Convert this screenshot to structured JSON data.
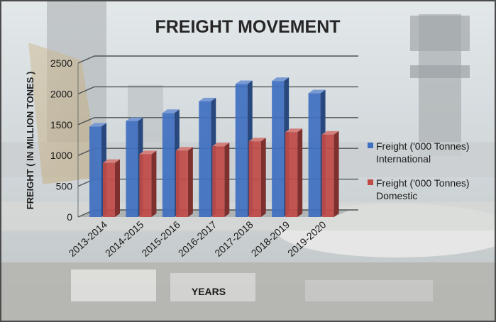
{
  "chart_data": {
    "type": "bar",
    "title": "FREIGHT MOVEMENT",
    "xlabel": "YEARS",
    "ylabel": "FREIGHT ( IN MILLION TONES )",
    "categories": [
      "2013-2014",
      "2014-2015",
      "2015-2016",
      "2016-2017",
      "2017-2018",
      "2018-2019",
      "2019-2020"
    ],
    "series": [
      {
        "name": "Freight ('000 Tonnes) International",
        "legend_lines": [
          "Freight ('000 Tonnes)",
          "International"
        ],
        "color": "#3f6fc0",
        "values": [
          1470,
          1560,
          1690,
          1880,
          2160,
          2210,
          2010
        ]
      },
      {
        "name": "Freight ('000 Tonnes) Domestic",
        "legend_lines": [
          "Freight ('000 Tonnes)",
          "Domestic"
        ],
        "color": "#c04a45",
        "values": [
          880,
          1020,
          1080,
          1150,
          1230,
          1380,
          1340
        ]
      }
    ],
    "ylim": [
      0,
      2500
    ],
    "yticks": [
      0,
      500,
      1000,
      1500,
      2000,
      2500
    ],
    "grid": true,
    "legend": "right",
    "style": "3d-clustered-bar"
  }
}
